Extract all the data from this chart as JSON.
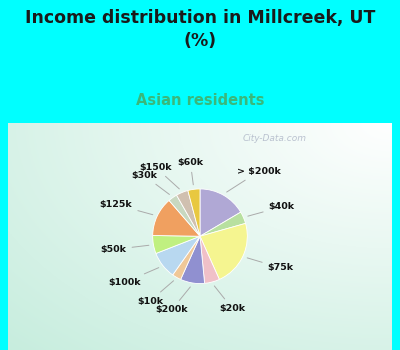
{
  "title": "Income distribution in Millcreek, UT\n(%)",
  "subtitle": "Asian residents",
  "title_color": "#1a1a1a",
  "subtitle_color": "#3ab87a",
  "bg_top": "#00ffff",
  "labels": [
    "> $200k",
    "$40k",
    "$75k",
    "$20k",
    "$200k",
    "$10k",
    "$100k",
    "$50k",
    "$125k",
    "$30k",
    "$150k",
    "$60k"
  ],
  "values": [
    16,
    4,
    22,
    5,
    8,
    3,
    9,
    6,
    13,
    3,
    4,
    4
  ],
  "colors": [
    "#b0a8d5",
    "#b8e0a0",
    "#f5f590",
    "#f0c0c8",
    "#9090d0",
    "#f0c898",
    "#b8d8f0",
    "#c0f080",
    "#f0a060",
    "#c8d8c0",
    "#d0c0b0",
    "#e8c840"
  ],
  "startangle": 90,
  "figsize": [
    4.0,
    3.5
  ],
  "dpi": 100,
  "watermark": "City-Data.com"
}
